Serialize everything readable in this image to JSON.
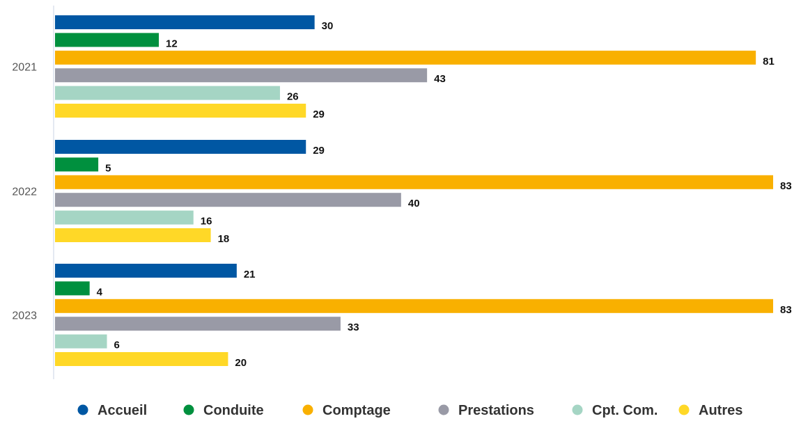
{
  "chart_data": {
    "type": "bar",
    "orientation": "horizontal",
    "categories": [
      "2021",
      "2022",
      "2023"
    ],
    "series": [
      {
        "name": "Accueil",
        "color": "#0057a3",
        "values": [
          30,
          29,
          21
        ]
      },
      {
        "name": "Conduite",
        "color": "#00903e",
        "values": [
          12,
          5,
          4
        ]
      },
      {
        "name": "Comptage",
        "color": "#f9b000",
        "values": [
          81,
          83,
          83
        ]
      },
      {
        "name": "Prestations",
        "color": "#999aa6",
        "values": [
          43,
          40,
          33
        ]
      },
      {
        "name": "Cpt. Com.",
        "color": "#a5d5c4",
        "values": [
          26,
          16,
          6
        ]
      },
      {
        "name": "Autres",
        "color": "#ffd827",
        "values": [
          29,
          18,
          20
        ]
      }
    ],
    "xlim": [
      0,
      83
    ],
    "grid": false,
    "legend": "bottom",
    "data_labels": true
  }
}
